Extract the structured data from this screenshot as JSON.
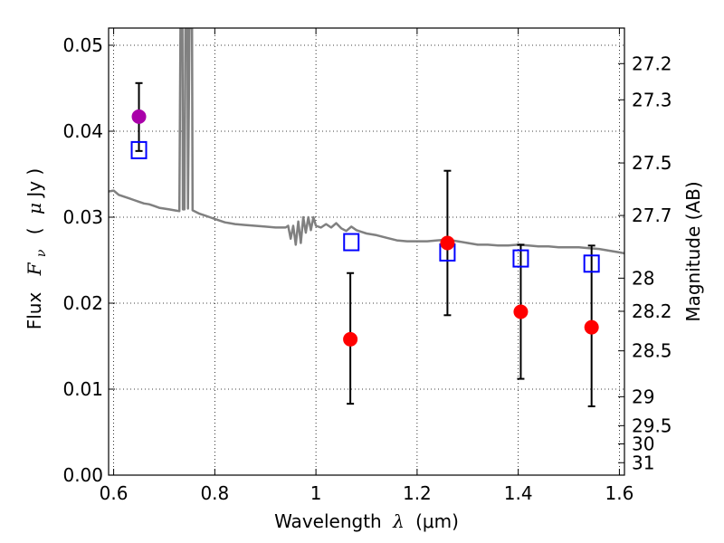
{
  "chart_data": {
    "type": "scatter",
    "xlabel_text": "Wavelength",
    "xlabel_symbol": "λ",
    "xlabel_unit": "(μm)",
    "ylabel_text": "Flux",
    "ylabel_symbol": "F",
    "ylabel_subscript": "ν",
    "ylabel_unit_open": "(",
    "ylabel_unit_mu": "μ",
    "ylabel_unit_rest": "Jy )",
    "y2label": "Magnitude (AB)",
    "xlim": [
      0.59,
      1.61
    ],
    "ylim": [
      0.0,
      0.052
    ],
    "grid": true,
    "x_ticks": [
      {
        "value": 0.6,
        "label": "0.6"
      },
      {
        "value": 0.8,
        "label": "0.8"
      },
      {
        "value": 1.0,
        "label": "1"
      },
      {
        "value": 1.2,
        "label": "1.2"
      },
      {
        "value": 1.4,
        "label": "1.4"
      },
      {
        "value": 1.6,
        "label": "1.6"
      }
    ],
    "y_ticks": [
      {
        "value": 0.0,
        "label": "0.00"
      },
      {
        "value": 0.01,
        "label": "0.01"
      },
      {
        "value": 0.02,
        "label": "0.02"
      },
      {
        "value": 0.03,
        "label": "0.03"
      },
      {
        "value": 0.04,
        "label": "0.04"
      },
      {
        "value": 0.05,
        "label": "0.05"
      }
    ],
    "y2_ticks": [
      {
        "value": 27.2,
        "label": "27.2"
      },
      {
        "value": 27.3,
        "label": "27.3"
      },
      {
        "value": 27.5,
        "label": "27.5"
      },
      {
        "value": 27.7,
        "label": "27.7"
      },
      {
        "value": 28.0,
        "label": "28"
      },
      {
        "value": 28.2,
        "label": "28.2"
      },
      {
        "value": 28.5,
        "label": "28.5"
      },
      {
        "value": 29.0,
        "label": "29"
      },
      {
        "value": 29.5,
        "label": "29.5"
      },
      {
        "value": 30.0,
        "label": "30"
      },
      {
        "value": 31.0,
        "label": "31"
      }
    ],
    "template_spectrum": {
      "color": "#808080",
      "points": [
        [
          0.59,
          0.033
        ],
        [
          0.6,
          0.0331
        ],
        [
          0.61,
          0.0326
        ],
        [
          0.62,
          0.0324
        ],
        [
          0.63,
          0.0322
        ],
        [
          0.64,
          0.032
        ],
        [
          0.65,
          0.0318
        ],
        [
          0.66,
          0.0316
        ],
        [
          0.67,
          0.0315
        ],
        [
          0.68,
          0.0313
        ],
        [
          0.69,
          0.0311
        ],
        [
          0.7,
          0.031
        ],
        [
          0.71,
          0.0309
        ],
        [
          0.72,
          0.0308
        ],
        [
          0.73,
          0.0307
        ],
        [
          0.732,
          0.052
        ],
        [
          0.736,
          0.052
        ],
        [
          0.737,
          0.0309
        ],
        [
          0.74,
          0.0309
        ],
        [
          0.742,
          0.052
        ],
        [
          0.746,
          0.052
        ],
        [
          0.747,
          0.031
        ],
        [
          0.75,
          0.052
        ],
        [
          0.755,
          0.052
        ],
        [
          0.756,
          0.0308
        ],
        [
          0.77,
          0.0304
        ],
        [
          0.78,
          0.0302
        ],
        [
          0.79,
          0.03
        ],
        [
          0.8,
          0.0298
        ],
        [
          0.81,
          0.0296
        ],
        [
          0.82,
          0.0294
        ],
        [
          0.83,
          0.0293
        ],
        [
          0.84,
          0.0292
        ],
        [
          0.86,
          0.0291
        ],
        [
          0.88,
          0.029
        ],
        [
          0.9,
          0.0289
        ],
        [
          0.92,
          0.0288
        ],
        [
          0.94,
          0.0288
        ],
        [
          0.945,
          0.029
        ],
        [
          0.95,
          0.0275
        ],
        [
          0.955,
          0.029
        ],
        [
          0.96,
          0.0268
        ],
        [
          0.965,
          0.0295
        ],
        [
          0.97,
          0.027
        ],
        [
          0.975,
          0.03
        ],
        [
          0.98,
          0.0282
        ],
        [
          0.985,
          0.03
        ],
        [
          0.99,
          0.0285
        ],
        [
          0.995,
          0.03
        ],
        [
          1.0,
          0.029
        ],
        [
          1.01,
          0.0288
        ],
        [
          1.02,
          0.0292
        ],
        [
          1.03,
          0.0288
        ],
        [
          1.04,
          0.0293
        ],
        [
          1.05,
          0.0287
        ],
        [
          1.06,
          0.0284
        ],
        [
          1.07,
          0.0289
        ],
        [
          1.08,
          0.0285
        ],
        [
          1.09,
          0.0283
        ],
        [
          1.1,
          0.0281
        ],
        [
          1.12,
          0.0279
        ],
        [
          1.14,
          0.0276
        ],
        [
          1.16,
          0.0273
        ],
        [
          1.18,
          0.0272
        ],
        [
          1.2,
          0.0272
        ],
        [
          1.22,
          0.0272
        ],
        [
          1.24,
          0.0273
        ],
        [
          1.26,
          0.0274
        ],
        [
          1.28,
          0.0272
        ],
        [
          1.3,
          0.027
        ],
        [
          1.32,
          0.0268
        ],
        [
          1.34,
          0.0268
        ],
        [
          1.36,
          0.0267
        ],
        [
          1.38,
          0.0267
        ],
        [
          1.4,
          0.0268
        ],
        [
          1.42,
          0.0267
        ],
        [
          1.44,
          0.0266
        ],
        [
          1.46,
          0.0266
        ],
        [
          1.48,
          0.0265
        ],
        [
          1.5,
          0.0265
        ],
        [
          1.52,
          0.0265
        ],
        [
          1.54,
          0.0264
        ],
        [
          1.56,
          0.0263
        ],
        [
          1.58,
          0.0261
        ],
        [
          1.6,
          0.0259
        ],
        [
          1.61,
          0.0258
        ]
      ]
    },
    "model_points": {
      "color": "#0000ff",
      "points": [
        [
          0.65,
          0.0378
        ],
        [
          1.07,
          0.0271
        ],
        [
          1.26,
          0.0259
        ],
        [
          1.405,
          0.0252
        ],
        [
          1.545,
          0.0246
        ]
      ]
    },
    "observed_points": {
      "color": "#ff0000",
      "points": [
        {
          "x": 1.068,
          "y": 0.0158,
          "err_low": 0.0083,
          "err_high": 0.0235
        },
        {
          "x": 1.26,
          "y": 0.027,
          "err_low": 0.0186,
          "err_high": 0.0354
        },
        {
          "x": 1.405,
          "y": 0.019,
          "err_low": 0.0112,
          "err_high": 0.0268
        },
        {
          "x": 1.545,
          "y": 0.0172,
          "err_low": 0.008,
          "err_high": 0.0267
        }
      ]
    },
    "special_point": {
      "color": "#aa00aa",
      "x": 0.65,
      "y": 0.0417,
      "err_low": 0.0377,
      "err_high": 0.0456
    }
  }
}
